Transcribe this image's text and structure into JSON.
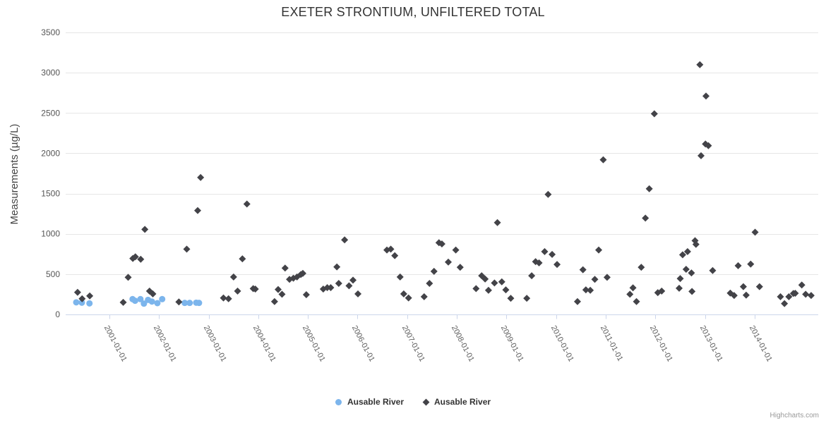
{
  "chart_data": {
    "type": "scatter",
    "title": "EXETER STRONTIUM, UNFILTERED TOTAL",
    "xlabel": "",
    "ylabel": "Measurements (µg/L)",
    "ylim": [
      0,
      3500
    ],
    "y_ticks": [
      0,
      500,
      1000,
      1500,
      2000,
      2500,
      3000,
      3500
    ],
    "x_tick_labels": [
      "2001-01-01",
      "2002-01-01",
      "2003-01-01",
      "2004-01-01",
      "2005-01-01",
      "2006-01-01",
      "2007-01-01",
      "2008-01-01",
      "2009-01-01",
      "2010-01-01",
      "2011-01-01",
      "2012-01-01",
      "2013-01-01",
      "2014-01-01"
    ],
    "xlim_decimal_years": [
      2000.12,
      2015.28
    ],
    "grid": true,
    "legend_position": "bottom-center",
    "credits": "Highcharts.com",
    "colors": {
      "series1": "#7cb5ec",
      "series2": "#434348",
      "grid": "#e6e6e6",
      "axis_line": "#ccd6eb",
      "title_text": "#333333",
      "axis_label_text": "#606060",
      "y_label_text": "#555555",
      "legend_text": "#333333",
      "credits_text": "#999999"
    },
    "series": [
      {
        "name": "Ausable River",
        "marker": "circle",
        "color": "#7cb5ec",
        "points": [
          [
            "2000-05-01",
            150
          ],
          [
            "2000-06-12",
            146
          ],
          [
            "2000-08-07",
            137
          ],
          [
            "2001-06-20",
            190
          ],
          [
            "2001-07-08",
            170
          ],
          [
            "2001-08-17",
            190
          ],
          [
            "2001-09-12",
            134
          ],
          [
            "2001-10-12",
            181
          ],
          [
            "2001-11-10",
            160
          ],
          [
            "2001-12-20",
            140
          ],
          [
            "2002-01-25",
            190
          ],
          [
            "2002-07-08",
            143
          ],
          [
            "2002-08-14",
            143
          ],
          [
            "2002-10-01",
            146
          ],
          [
            "2002-10-22",
            143
          ]
        ]
      },
      {
        "name": "Ausable River",
        "marker": "diamond",
        "color": "#434348",
        "points": [
          [
            "2000-05-11",
            275
          ],
          [
            "2000-06-14",
            195
          ],
          [
            "2000-08-09",
            230
          ],
          [
            "2001-04-12",
            150
          ],
          [
            "2001-05-18",
            460
          ],
          [
            "2001-06-22",
            695
          ],
          [
            "2001-07-10",
            715
          ],
          [
            "2001-08-19",
            685
          ],
          [
            "2001-09-19",
            1055
          ],
          [
            "2001-10-23",
            290
          ],
          [
            "2001-11-17",
            255
          ],
          [
            "2002-05-26",
            155
          ],
          [
            "2002-07-23",
            810
          ],
          [
            "2002-10-12",
            1290
          ],
          [
            "2002-11-03",
            1700
          ],
          [
            "2003-04-19",
            205
          ],
          [
            "2003-05-26",
            195
          ],
          [
            "2003-07-02",
            465
          ],
          [
            "2003-08-01",
            290
          ],
          [
            "2003-09-06",
            690
          ],
          [
            "2003-10-09",
            1370
          ],
          [
            "2003-11-25",
            320
          ],
          [
            "2003-12-10",
            315
          ],
          [
            "2004-04-30",
            160
          ],
          [
            "2004-05-26",
            310
          ],
          [
            "2004-06-24",
            250
          ],
          [
            "2004-07-16",
            575
          ],
          [
            "2004-08-18",
            435
          ],
          [
            "2004-09-16",
            450
          ],
          [
            "2004-10-12",
            465
          ],
          [
            "2004-11-10",
            495
          ],
          [
            "2004-11-25",
            510
          ],
          [
            "2004-12-20",
            245
          ],
          [
            "2005-04-23",
            315
          ],
          [
            "2005-05-22",
            332
          ],
          [
            "2005-06-17",
            332
          ],
          [
            "2005-08-01",
            590
          ],
          [
            "2005-08-15",
            385
          ],
          [
            "2005-09-28",
            925
          ],
          [
            "2005-10-30",
            355
          ],
          [
            "2005-11-29",
            425
          ],
          [
            "2006-01-04",
            255
          ],
          [
            "2006-08-04",
            800
          ],
          [
            "2006-09-02",
            810
          ],
          [
            "2006-10-01",
            730
          ],
          [
            "2006-11-10",
            465
          ],
          [
            "2006-12-06",
            255
          ],
          [
            "2007-01-11",
            205
          ],
          [
            "2007-05-04",
            220
          ],
          [
            "2007-06-13",
            385
          ],
          [
            "2007-07-16",
            535
          ],
          [
            "2007-08-22",
            890
          ],
          [
            "2007-09-13",
            875
          ],
          [
            "2007-10-30",
            650
          ],
          [
            "2007-12-24",
            800
          ],
          [
            "2008-01-26",
            585
          ],
          [
            "2008-05-21",
            320
          ],
          [
            "2008-07-01",
            480
          ],
          [
            "2008-07-27",
            440
          ],
          [
            "2008-08-21",
            300
          ],
          [
            "2008-10-04",
            390
          ],
          [
            "2008-10-26",
            1140
          ],
          [
            "2008-11-28",
            405
          ],
          [
            "2008-12-27",
            305
          ],
          [
            "2009-02-02",
            200
          ],
          [
            "2009-05-29",
            200
          ],
          [
            "2009-07-04",
            480
          ],
          [
            "2009-08-02",
            655
          ],
          [
            "2009-08-28",
            640
          ],
          [
            "2009-10-08",
            780
          ],
          [
            "2009-11-03",
            1490
          ],
          [
            "2009-12-02",
            745
          ],
          [
            "2010-01-08",
            620
          ],
          [
            "2010-06-06",
            160
          ],
          [
            "2010-07-16",
            555
          ],
          [
            "2010-08-07",
            305
          ],
          [
            "2010-09-09",
            300
          ],
          [
            "2010-10-12",
            435
          ],
          [
            "2010-11-10",
            800
          ],
          [
            "2010-12-13",
            1920
          ],
          [
            "2011-01-11",
            460
          ],
          [
            "2011-06-27",
            250
          ],
          [
            "2011-07-19",
            330
          ],
          [
            "2011-08-14",
            160
          ],
          [
            "2011-09-19",
            585
          ],
          [
            "2011-10-19",
            1195
          ],
          [
            "2011-11-17",
            1560
          ],
          [
            "2011-12-24",
            2490
          ],
          [
            "2012-01-19",
            270
          ],
          [
            "2012-02-17",
            290
          ],
          [
            "2012-06-24",
            325
          ],
          [
            "2012-07-01",
            445
          ],
          [
            "2012-07-19",
            740
          ],
          [
            "2012-08-14",
            560
          ],
          [
            "2012-08-25",
            780
          ],
          [
            "2012-09-23",
            515
          ],
          [
            "2012-09-27",
            285
          ],
          [
            "2012-10-19",
            915
          ],
          [
            "2012-10-26",
            870
          ],
          [
            "2012-11-24",
            3100
          ],
          [
            "2012-12-02",
            1970
          ],
          [
            "2013-01-04",
            2115
          ],
          [
            "2013-01-08",
            2710
          ],
          [
            "2013-01-26",
            2095
          ],
          [
            "2013-02-27",
            545
          ],
          [
            "2013-07-04",
            265
          ],
          [
            "2013-08-02",
            235
          ],
          [
            "2013-09-01",
            605
          ],
          [
            "2013-10-09",
            345
          ],
          [
            "2013-10-30",
            240
          ],
          [
            "2013-12-02",
            625
          ],
          [
            "2014-01-04",
            1020
          ],
          [
            "2014-02-06",
            345
          ],
          [
            "2014-07-08",
            220
          ],
          [
            "2014-08-07",
            135
          ],
          [
            "2014-09-09",
            220
          ],
          [
            "2014-10-12",
            260
          ],
          [
            "2014-10-26",
            262
          ],
          [
            "2014-12-13",
            365
          ],
          [
            "2015-01-11",
            250
          ],
          [
            "2015-02-21",
            235
          ]
        ]
      }
    ]
  }
}
